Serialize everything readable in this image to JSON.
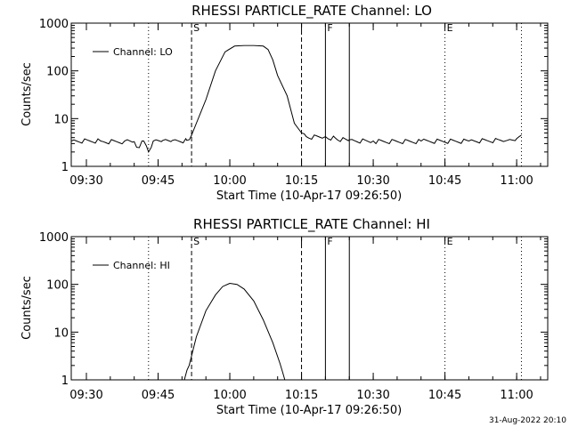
{
  "footer": {
    "timestamp": "31-Aug-2022 20:10"
  },
  "chart_data": [
    {
      "type": "line",
      "title": "RHESSI PARTICLE_RATE Channel: LO",
      "xlabel": "Start Time (10-Apr-17 09:26:50)",
      "ylabel": "Counts/sec",
      "yscale": "log",
      "ylim": [
        1,
        1000
      ],
      "xlim": [
        "09:26:50",
        "11:06:30"
      ],
      "x_ticks": [
        "09:30",
        "09:45",
        "10:00",
        "10:15",
        "10:30",
        "10:45",
        "11:00"
      ],
      "y_ticks": [
        "1",
        "10",
        "100",
        "1000"
      ],
      "legend": {
        "label": "Channel: LO",
        "position": "top-left"
      },
      "markers": [
        {
          "label": "S",
          "time": "09:52:00",
          "style": "dashed"
        },
        {
          "label": "",
          "time": "10:15:00",
          "style": "dashed"
        },
        {
          "label": "F",
          "time": "10:20:00",
          "style": "solid"
        },
        {
          "label": "",
          "time": "10:25:00",
          "style": "solid"
        },
        {
          "label": "E",
          "time": "10:45:00",
          "style": "dotted"
        },
        {
          "label": "",
          "time": "11:01:00",
          "style": "dotted"
        },
        {
          "label": "",
          "time": "09:43:00",
          "style": "dotted"
        }
      ],
      "series": [
        {
          "name": "Channel: LO",
          "x": [
            "09:26:50",
            "09:33:00",
            "09:38:00",
            "09:40:00",
            "09:40:30",
            "09:42:00",
            "09:43:00",
            "09:44:00",
            "09:46:00",
            "09:48:00",
            "09:51:00",
            "09:52:00",
            "09:53:00",
            "09:55:00",
            "09:57:00",
            "09:59:00",
            "10:01:00",
            "10:03:00",
            "10:05:00",
            "10:07:00",
            "10:08:00",
            "10:09:00",
            "10:10:00",
            "10:12:00",
            "10:13:30",
            "10:15:00",
            "10:16:00",
            "10:20:00",
            "10:22:00",
            "10:25:00",
            "10:30:00",
            "10:40:00",
            "10:50:00",
            "10:58:00",
            "11:00:00",
            "11:01:00"
          ],
          "values": [
            3.4,
            3.4,
            3.4,
            3.3,
            2.5,
            3.4,
            2.0,
            3.4,
            3.5,
            3.5,
            3.5,
            4.5,
            8,
            25,
            100,
            250,
            330,
            340,
            340,
            330,
            280,
            170,
            80,
            30,
            8,
            5,
            4.2,
            4.2,
            4.0,
            3.6,
            3.4,
            3.4,
            3.4,
            3.5,
            3.8,
            4.5
          ]
        }
      ]
    },
    {
      "type": "line",
      "title": "RHESSI PARTICLE_RATE Channel: HI",
      "xlabel": "Start Time (10-Apr-17 09:26:50)",
      "ylabel": "Counts/sec",
      "yscale": "log",
      "ylim": [
        1,
        1000
      ],
      "xlim": [
        "09:26:50",
        "11:06:30"
      ],
      "x_ticks": [
        "09:30",
        "09:45",
        "10:00",
        "10:15",
        "10:30",
        "10:45",
        "11:00"
      ],
      "y_ticks": [
        "1",
        "10",
        "100",
        "1000"
      ],
      "legend": {
        "label": "Channel: HI",
        "position": "top-left"
      },
      "markers": [
        {
          "label": "S",
          "time": "09:52:00",
          "style": "dashed"
        },
        {
          "label": "",
          "time": "10:15:00",
          "style": "dashed"
        },
        {
          "label": "F",
          "time": "10:20:00",
          "style": "solid"
        },
        {
          "label": "",
          "time": "10:25:00",
          "style": "solid"
        },
        {
          "label": "E",
          "time": "10:45:00",
          "style": "dotted"
        },
        {
          "label": "",
          "time": "11:01:00",
          "style": "dotted"
        },
        {
          "label": "",
          "time": "09:43:00",
          "style": "dotted"
        }
      ],
      "series": [
        {
          "name": "Channel: HI",
          "x": [
            "09:50:30",
            "09:51:30",
            "09:53:00",
            "09:55:00",
            "09:57:00",
            "09:58:30",
            "10:00:00",
            "10:01:30",
            "10:03:00",
            "10:05:00",
            "10:07:00",
            "10:09:00",
            "10:10:30",
            "10:11:30"
          ],
          "values": [
            1.0,
            2.0,
            8,
            28,
            60,
            90,
            105,
            100,
            80,
            45,
            18,
            6,
            2.2,
            1.0
          ]
        }
      ]
    }
  ]
}
